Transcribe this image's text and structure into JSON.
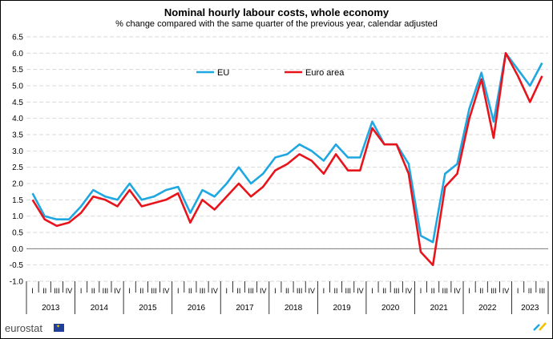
{
  "chart_data": {
    "type": "line",
    "title": "Nominal hourly labour costs, whole economy",
    "subtitle": "% change compared with the same quarter of the previous year, calendar adjusted",
    "ylim": [
      -1.0,
      6.5
    ],
    "yticks": [
      "6.5",
      "6.0",
      "5.5",
      "5.0",
      "4.5",
      "4.0",
      "3.5",
      "3.0",
      "2.5",
      "2.0",
      "1.5",
      "1.0",
      "0.5",
      "0.0",
      "-0.5",
      "-1.0"
    ],
    "ytick_values": [
      6.5,
      6.0,
      5.5,
      5.0,
      4.5,
      4.0,
      3.5,
      3.0,
      2.5,
      2.0,
      1.5,
      1.0,
      0.5,
      0.0,
      -0.5,
      -1.0
    ],
    "grid": true,
    "quarter_labels": [
      "I",
      "II",
      "III",
      "IV"
    ],
    "years": [
      "2013",
      "2014",
      "2015",
      "2016",
      "2017",
      "2018",
      "2019",
      "2020",
      "2021",
      "2022",
      "2023"
    ],
    "legend_position": "top-left",
    "series": [
      {
        "name": "EU",
        "color": "#1fa7e1",
        "values": [
          1.7,
          1.0,
          0.9,
          0.9,
          1.3,
          1.8,
          1.6,
          1.5,
          2.0,
          1.5,
          1.6,
          1.8,
          1.9,
          1.1,
          1.8,
          1.6,
          2.0,
          2.5,
          2.0,
          2.3,
          2.8,
          2.9,
          3.2,
          3.0,
          2.7,
          3.2,
          2.8,
          2.8,
          3.9,
          3.2,
          3.2,
          2.6,
          0.4,
          0.2,
          2.3,
          2.6,
          4.3,
          5.4,
          3.9,
          6.0,
          5.5,
          5.0,
          5.7
        ]
      },
      {
        "name": "Euro area",
        "color": "#e8141b",
        "values": [
          1.5,
          0.9,
          0.7,
          0.8,
          1.1,
          1.6,
          1.5,
          1.3,
          1.8,
          1.3,
          1.4,
          1.5,
          1.7,
          0.8,
          1.5,
          1.2,
          1.6,
          2.0,
          1.6,
          1.9,
          2.4,
          2.6,
          2.9,
          2.7,
          2.3,
          2.9,
          2.4,
          2.4,
          3.7,
          3.2,
          3.2,
          2.3,
          -0.1,
          -0.5,
          1.9,
          2.3,
          4.0,
          5.2,
          3.4,
          6.0,
          5.3,
          4.5,
          5.3
        ]
      }
    ]
  },
  "footer": {
    "logo_text": "eurostat"
  }
}
